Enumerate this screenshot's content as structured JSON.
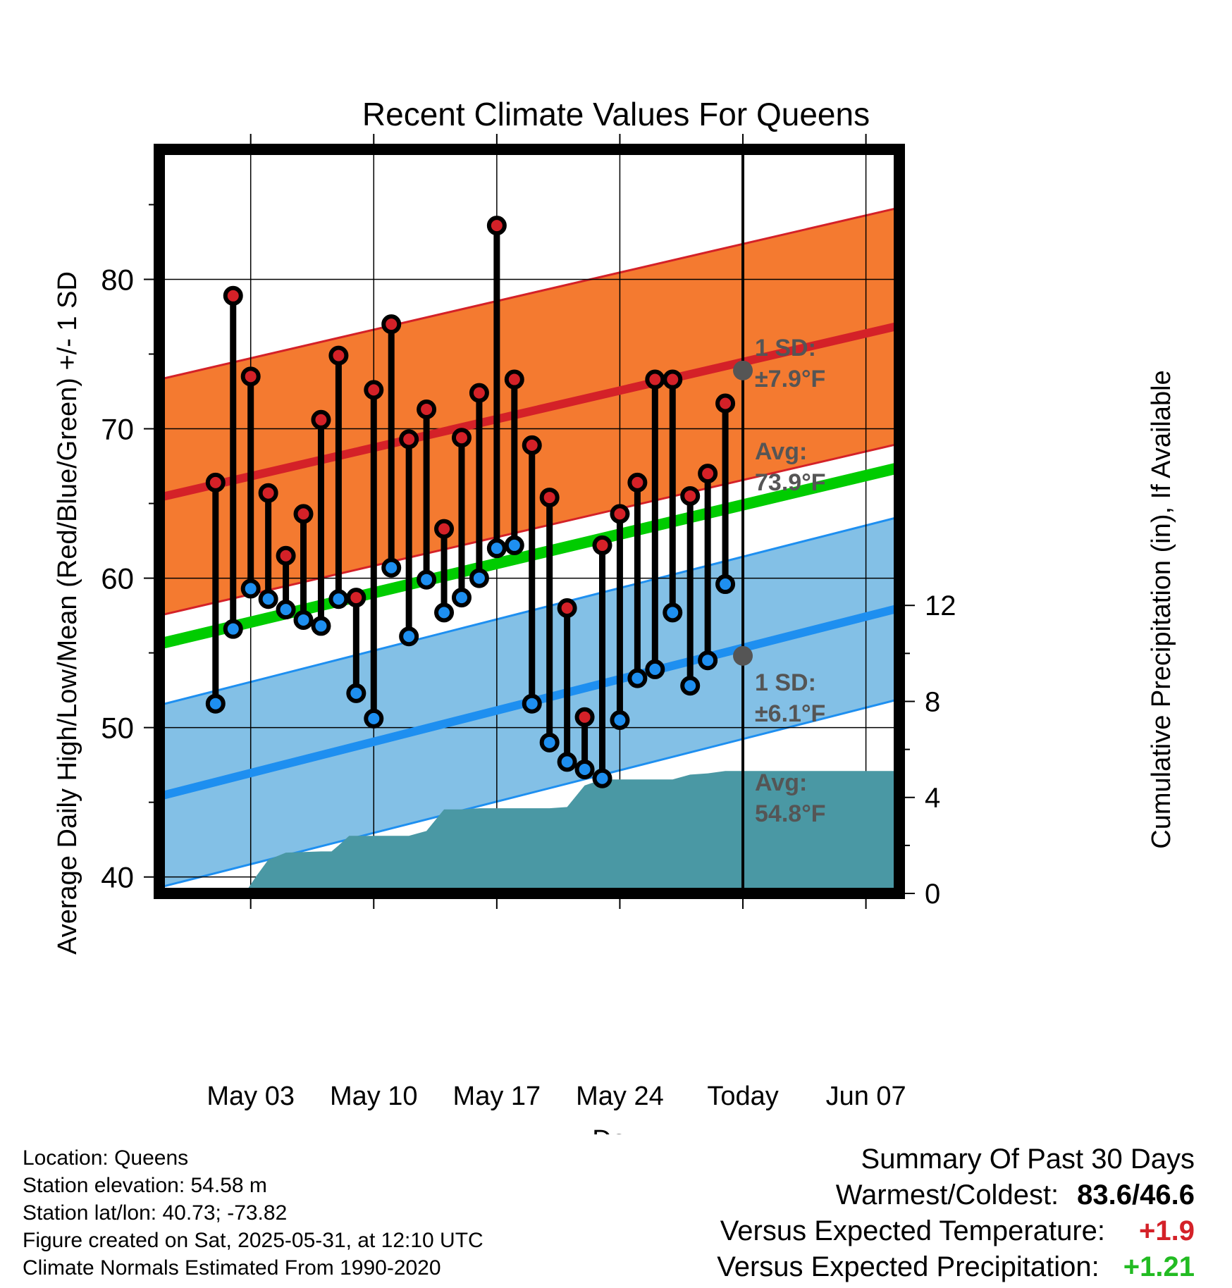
{
  "chart_data": {
    "type": "line",
    "title": "Recent Climate Values For Queens",
    "xlabel": "Day",
    "ylabel": "Average Daily High/Low/Mean (Red/Blue/Green) +/- 1 SD",
    "y2label": "Cumulative Precipitation (in), If Available",
    "ylim": [
      38.9,
      88.7
    ],
    "y2lim": [
      0,
      31
    ],
    "xlim": [
      -2.2,
      39.9
    ],
    "x_ticks": [
      {
        "day": 3,
        "label": "May 03"
      },
      {
        "day": 10,
        "label": "May 10"
      },
      {
        "day": 17,
        "label": "May 17"
      },
      {
        "day": 24,
        "label": "May 24"
      },
      {
        "day": 31,
        "label": "Today"
      },
      {
        "day": 38,
        "label": "Jun 07"
      }
    ],
    "y_ticks": [
      "40",
      "50",
      "60",
      "70",
      "80"
    ],
    "y2_ticks": [
      "0",
      "4",
      "8",
      "12"
    ],
    "days": [
      1,
      2,
      3,
      4,
      5,
      6,
      7,
      8,
      9,
      10,
      11,
      12,
      13,
      14,
      15,
      16,
      17,
      18,
      19,
      20,
      21,
      22,
      23,
      24,
      25,
      26,
      27,
      28,
      29,
      30
    ],
    "highs": [
      66.4,
      78.9,
      73.5,
      65.7,
      61.5,
      64.3,
      70.6,
      74.9,
      58.7,
      72.6,
      77.0,
      69.3,
      71.3,
      63.3,
      69.4,
      72.4,
      83.6,
      73.3,
      68.9,
      65.4,
      58.0,
      50.7,
      62.2,
      64.3,
      66.4,
      73.3,
      73.3,
      65.5,
      67.0,
      71.7
    ],
    "lows": [
      51.6,
      56.6,
      59.3,
      58.6,
      57.9,
      57.2,
      56.8,
      58.6,
      52.3,
      50.6,
      60.7,
      56.1,
      59.9,
      57.7,
      58.7,
      60.0,
      62.0,
      62.2,
      51.6,
      49.0,
      47.7,
      47.2,
      46.6,
      50.5,
      53.3,
      53.9,
      57.7,
      52.8,
      54.5,
      59.6
    ],
    "normal_high": {
      "start": 65.4,
      "end": 76.9,
      "sd": 7.9
    },
    "normal_low": {
      "start": 45.4,
      "end": 58.0,
      "sd": 6.1
    },
    "normal_mean": {
      "start": 55.6,
      "end": 67.4
    },
    "precip_cumulative": [
      [
        2.4,
        0
      ],
      [
        2.8,
        0.15
      ],
      [
        3.3,
        0.7
      ],
      [
        4.0,
        1.4
      ],
      [
        5.0,
        1.7
      ],
      [
        7.0,
        1.75
      ],
      [
        7.6,
        1.75
      ],
      [
        8.0,
        2.0
      ],
      [
        8.6,
        2.4
      ],
      [
        11.0,
        2.4
      ],
      [
        12.0,
        2.4
      ],
      [
        13.0,
        2.6
      ],
      [
        14.0,
        3.5
      ],
      [
        15.0,
        3.5
      ],
      [
        16.0,
        3.55
      ],
      [
        17.0,
        3.55
      ],
      [
        20.0,
        3.55
      ],
      [
        21.0,
        3.6
      ],
      [
        22.0,
        4.5
      ],
      [
        23.0,
        4.75
      ],
      [
        27.0,
        4.75
      ],
      [
        28.0,
        4.95
      ],
      [
        29.0,
        5.0
      ],
      [
        30.0,
        5.1
      ],
      [
        31.0,
        5.1
      ],
      [
        39.9,
        5.1
      ]
    ],
    "today_marker": {
      "day": 31,
      "high_avg": 73.9,
      "low_avg": 54.8
    },
    "annotations": {
      "high_sd_label": "1 SD:",
      "high_sd_value": "±7.9°F",
      "high_avg_label": "Avg:",
      "high_avg_value": "73.9°F",
      "low_sd_label": "1 SD:",
      "low_sd_value": "±6.1°F",
      "low_avg_label": "Avg:",
      "low_avg_value": "54.8°F",
      "window_number": "30",
      "window_unit": "Days"
    },
    "colors": {
      "high_band": "#F47A30",
      "high_line": "#D42128",
      "low_band": "#83C0E6",
      "low_line": "#1E8FF0",
      "mean_line": "#00CC00",
      "precip": "#4A98A4",
      "high_dot": "#D42128",
      "low_dot": "#1E8FF0",
      "marker": "#555555",
      "annotation_text": "#555555"
    }
  },
  "footer": {
    "location": "Location: Queens",
    "elevation": "Station elevation: 54.58 m",
    "latlon": "Station lat/lon: 40.73; -73.82",
    "created": "Figure created on Sat, 2025-05-31, at 12:10 UTC",
    "normals": "Climate Normals Estimated From 1990-2020"
  },
  "summary": {
    "title": "Summary Of Past 30 Days",
    "warmest_label": "Warmest/Coldest:",
    "warmest_value": "83.6/46.6",
    "temp_label": "Versus Expected Temperature:",
    "temp_value": "+1.9",
    "temp_color": "#D42128",
    "precip_label": "Versus Expected Precipitation:",
    "precip_value": "+1.21",
    "precip_color": "#22BB22"
  }
}
